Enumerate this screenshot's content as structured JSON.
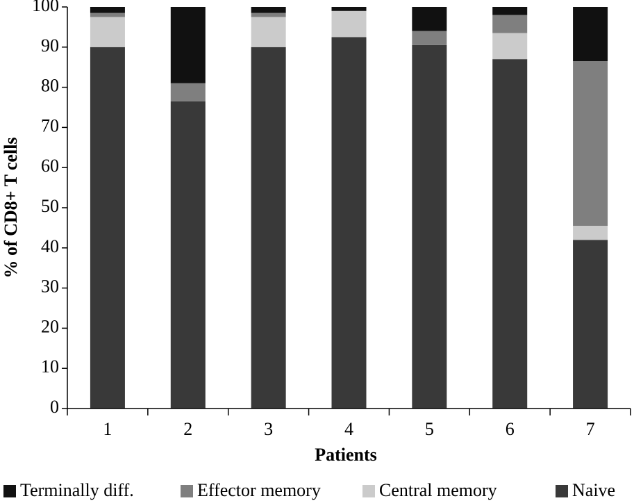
{
  "chart_data": {
    "type": "stacked_bar",
    "xlabel": "Patients",
    "ylabel": "% of CD8+ T cells",
    "categories": [
      "1",
      "2",
      "3",
      "4",
      "5",
      "6",
      "7"
    ],
    "series": [
      {
        "name": "Naive",
        "color": "#393939",
        "values": [
          90,
          76.5,
          90,
          92.5,
          90.5,
          87,
          42
        ]
      },
      {
        "name": "Central memory",
        "color": "#cbcbcb",
        "values": [
          7.5,
          0,
          7.5,
          6.5,
          0,
          6.5,
          3.5
        ]
      },
      {
        "name": "Effector memory",
        "color": "#7f7f7f",
        "values": [
          1,
          4.5,
          1,
          0,
          3.5,
          4.5,
          41
        ]
      },
      {
        "name": "Terminally diff.",
        "color": "#111111",
        "values": [
          1.5,
          19,
          1.5,
          1,
          6,
          2,
          13.5
        ]
      }
    ],
    "ylim": [
      0,
      100
    ],
    "yticks": [
      0,
      10,
      20,
      30,
      40,
      50,
      60,
      70,
      80,
      90,
      100
    ]
  }
}
